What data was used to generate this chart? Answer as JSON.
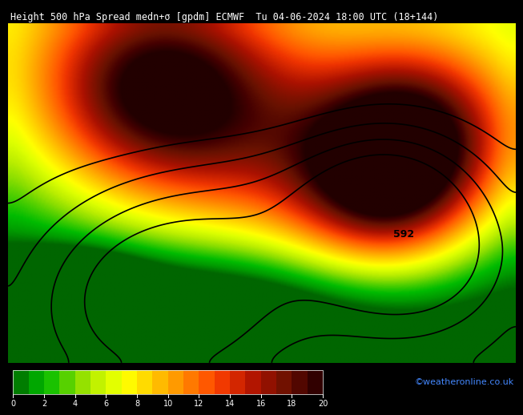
{
  "title": "Height 500 hPa Spread medn+σ [gpdm] ECMWF  Tu 04-06-2024 18:00 UTC (18+144)",
  "cbar_min": 0,
  "cbar_max": 20,
  "cbar_ticks": [
    0,
    2,
    4,
    6,
    8,
    10,
    12,
    14,
    16,
    18,
    20
  ],
  "colors_list": [
    "#006600",
    "#009900",
    "#00bb00",
    "#44cc00",
    "#88dd00",
    "#bbee00",
    "#ddff00",
    "#ffff00",
    "#ffdd00",
    "#ffbb00",
    "#ff9900",
    "#ff7700",
    "#ff5500",
    "#ee3300",
    "#cc2200",
    "#aa1100",
    "#881100",
    "#661100",
    "#440000",
    "#220000"
  ],
  "background_color": "#000000",
  "title_color": "#ffffff",
  "title_fontsize": 8.5,
  "watermark": "©weatheronline.co.uk",
  "watermark_color": "#4488ff"
}
